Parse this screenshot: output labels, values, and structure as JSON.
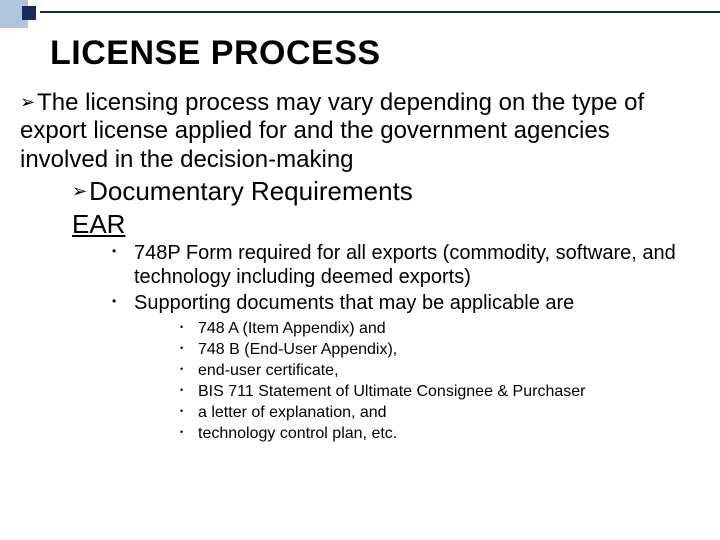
{
  "colors": {
    "square_light": "#b0c4de",
    "square_dark": "#1a2a5c",
    "line": "#1a2a5c",
    "text": "#000000",
    "background": "#ffffff"
  },
  "title": "LICENSE PROCESS",
  "arrow_glyph": "➢",
  "l1_text": "The licensing process may vary depending on the type of export license applied for and the government agencies involved in the decision-making",
  "l2_text": "Documentary Requirements",
  "l2_heading": "EAR",
  "l3_items": [
    "748P Form required for all exports (commodity, software, and technology including deemed exports)",
    "Supporting documents that may be applicable are"
  ],
  "l4_items": [
    "748 A (Item Appendix) and",
    "748  B (End-User Appendix),",
    "end-user certificate,",
    "BIS 711 Statement of Ultimate Consignee & Purchaser",
    "a letter of explanation, and",
    "technology control plan, etc."
  ],
  "typography": {
    "title_fontsize": 34,
    "l1_fontsize": 24,
    "l2_fontsize": 26,
    "l3_fontsize": 20,
    "l4_fontsize": 16,
    "font_family": "Arial"
  }
}
